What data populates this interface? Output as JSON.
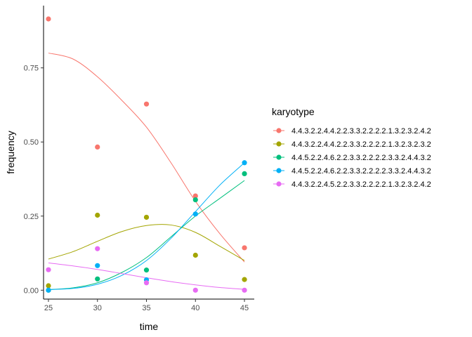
{
  "chart_data": {
    "type": "scatter",
    "title": "",
    "xlabel": "time",
    "ylabel": "frequency",
    "xlim": [
      24.5,
      46
    ],
    "ylim": [
      -0.03,
      0.96
    ],
    "xticks": [
      25,
      30,
      35,
      40,
      45
    ],
    "xtick_labels": [
      "25",
      "30",
      "35",
      "40",
      "45"
    ],
    "yticks": [
      0.0,
      0.25,
      0.5,
      0.75
    ],
    "ytick_labels": [
      "0.00",
      "0.25",
      "0.50",
      "0.75"
    ],
    "grid": false,
    "legend": {
      "title": "karyotype",
      "position": "right"
    },
    "series": [
      {
        "name": "4.4.3.2.2.4.4.2.2.3.3.2.2.2.2.1.3.2.3.2.4.2",
        "color": "#F8766D",
        "x": [
          25,
          30,
          35,
          40,
          45
        ],
        "y": [
          0.915,
          0.483,
          0.628,
          0.318,
          0.143
        ],
        "trend": [
          [
            25,
            0.8
          ],
          [
            27.5,
            0.78
          ],
          [
            30,
            0.72
          ],
          [
            32.5,
            0.64
          ],
          [
            35,
            0.55
          ],
          [
            37.5,
            0.43
          ],
          [
            40,
            0.3
          ],
          [
            42.5,
            0.19
          ],
          [
            45,
            0.095
          ]
        ]
      },
      {
        "name": "4.4.3.2.2.4.4.2.2.3.3.2.2.2.2.1.3.2.3.2.3.2",
        "color": "#A3A500",
        "x": [
          25,
          30,
          35,
          40,
          45
        ],
        "y": [
          0.015,
          0.253,
          0.246,
          0.118,
          0.036
        ],
        "trend": [
          [
            25,
            0.105
          ],
          [
            27.5,
            0.13
          ],
          [
            30,
            0.165
          ],
          [
            32.5,
            0.198
          ],
          [
            35,
            0.218
          ],
          [
            37.5,
            0.22
          ],
          [
            40,
            0.195
          ],
          [
            42.5,
            0.148
          ],
          [
            45,
            0.1
          ]
        ]
      },
      {
        "name": "4.4.5.2.2.4.6.2.2.3.3.2.2.2.2.3.3.2.4.4.3.2",
        "color": "#00BF7D",
        "x": [
          25,
          30,
          35,
          40,
          45
        ],
        "y": [
          0.0,
          0.038,
          0.068,
          0.305,
          0.393
        ],
        "trend": [
          [
            25,
            0.002
          ],
          [
            27.5,
            0.008
          ],
          [
            30,
            0.025
          ],
          [
            32.5,
            0.06
          ],
          [
            35,
            0.11
          ],
          [
            37.5,
            0.18
          ],
          [
            40,
            0.25
          ],
          [
            42.5,
            0.31
          ],
          [
            45,
            0.37
          ]
        ]
      },
      {
        "name": "4.4.5.2.2.4.6.2.2.3.3.2.2.2.2.3.3.2.4.4.3.2",
        "color": "#00B0F6",
        "x": [
          25,
          30,
          35,
          40,
          45
        ],
        "y": [
          0.0,
          0.083,
          0.035,
          0.257,
          0.43
        ],
        "trend": [
          [
            25,
            0.002
          ],
          [
            27.5,
            0.006
          ],
          [
            30,
            0.02
          ],
          [
            32.5,
            0.05
          ],
          [
            35,
            0.1
          ],
          [
            37.5,
            0.175
          ],
          [
            40,
            0.265
          ],
          [
            42.5,
            0.355
          ],
          [
            45,
            0.43
          ]
        ]
      },
      {
        "name": "4.4.3.2.2.4.5.2.2.3.3.2.2.2.2.1.3.2.3.2.4.2",
        "color": "#E76BF3",
        "x": [
          25,
          30,
          35,
          40,
          45
        ],
        "y": [
          0.069,
          0.14,
          0.025,
          0.0,
          0.0
        ],
        "trend": [
          [
            25,
            0.092
          ],
          [
            27.5,
            0.082
          ],
          [
            30,
            0.07
          ],
          [
            32.5,
            0.056
          ],
          [
            35,
            0.042
          ],
          [
            37.5,
            0.029
          ],
          [
            40,
            0.018
          ],
          [
            42.5,
            0.009
          ],
          [
            45,
            0.003
          ]
        ]
      }
    ]
  }
}
